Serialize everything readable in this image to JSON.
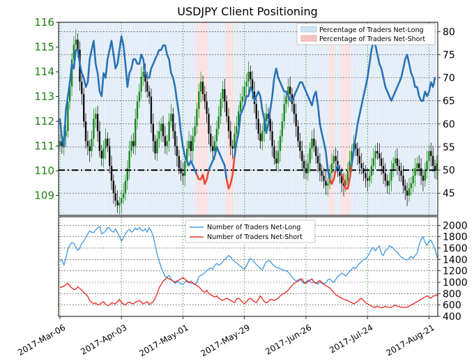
{
  "chart_data": [
    {
      "type": "line",
      "panel": "top",
      "title": "USDJPY Client Positioning",
      "left_axis_ticks": [
        "116",
        "115",
        "114",
        "113",
        "112",
        "111",
        "110",
        "109"
      ],
      "left_ylim": [
        108.2,
        116.0
      ],
      "right_axis_ticks": [
        "80",
        "75",
        "70",
        "65",
        "60",
        "55",
        "50",
        "45"
      ],
      "right_ylim": [
        40.2,
        82.0
      ],
      "grid": true,
      "legend_position": "top-right",
      "reference_line": 50,
      "series": [
        {
          "name": "Percentage of Traders Net-Long",
          "color": "#cfe3f4"
        },
        {
          "name": "Percentage of Traders Net-Short",
          "color": "#f7c4c4"
        }
      ],
      "positioning_line": [
        61,
        57,
        55,
        63,
        66,
        69,
        73,
        72,
        76,
        76,
        73,
        71,
        70,
        68,
        69,
        74,
        76,
        78,
        73,
        71,
        67,
        66,
        71,
        70,
        74,
        76,
        78,
        75,
        72,
        73,
        76,
        79,
        77,
        73,
        68,
        71,
        72,
        74,
        74,
        73,
        73,
        75,
        74,
        71,
        70,
        70,
        72,
        73,
        74,
        75,
        76,
        76,
        77,
        77,
        75,
        74,
        71,
        70,
        68,
        65,
        62,
        58,
        55,
        53,
        52,
        51,
        52,
        51,
        50,
        49,
        48,
        48,
        49,
        47,
        48,
        50,
        51,
        52,
        53,
        55,
        54,
        53,
        52,
        51,
        48,
        46,
        47,
        49,
        53,
        56,
        58,
        62,
        63,
        64,
        66,
        66,
        68,
        67,
        65,
        66,
        67,
        66,
        63,
        61,
        58,
        60,
        63,
        66,
        70,
        72,
        70,
        69,
        68,
        67,
        67,
        66,
        65,
        65,
        66,
        67,
        68,
        69,
        69,
        68,
        67,
        66,
        65,
        64,
        66,
        67,
        64,
        60,
        58,
        56,
        54,
        50,
        48,
        47,
        48,
        50,
        51,
        50,
        49,
        48,
        46,
        46,
        48,
        51,
        54,
        57,
        60,
        62,
        64,
        66,
        68,
        70,
        73,
        76,
        78,
        77,
        75,
        73,
        72,
        70,
        68,
        67,
        66,
        65,
        66,
        67,
        68,
        69,
        70,
        72,
        74,
        75,
        73,
        71,
        70,
        68,
        68,
        66,
        65,
        65,
        67,
        66,
        67,
        69,
        68,
        70
      ],
      "price": [
        111.2,
        111.0,
        111.4,
        111.6,
        112.8,
        113.4,
        114.5,
        115.1,
        115.3,
        114.9,
        113.6,
        113.1,
        112.0,
        111.2,
        111.0,
        110.8,
        111.3,
        112.1,
        112.3,
        111.6,
        110.8,
        110.5,
        110.9,
        111.3,
        111.0,
        110.2,
        109.6,
        109.1,
        108.8,
        108.6,
        108.7,
        108.9,
        109.1,
        109.6,
        110.1,
        110.8,
        111.2,
        111.0,
        112.1,
        112.8,
        113.2,
        113.8,
        114.0,
        113.6,
        113.2,
        113.0,
        111.9,
        111.2,
        110.7,
        111.3,
        111.6,
        111.9,
        111.4,
        111.0,
        111.2,
        112.0,
        112.3,
        111.6,
        111.0,
        110.6,
        110.1,
        109.9,
        109.8,
        110.4,
        110.9,
        111.2,
        110.8,
        111.4,
        111.8,
        112.5,
        113.2,
        113.6,
        113.1,
        112.8,
        112.3,
        111.5,
        111.0,
        110.8,
        111.2,
        111.7,
        112.2,
        112.9,
        113.3,
        112.8,
        112.2,
        111.6,
        111.0,
        110.9,
        111.5,
        111.8,
        112.4,
        112.8,
        113.0,
        113.4,
        113.6,
        114.0,
        113.7,
        113.2,
        112.7,
        112.1,
        111.5,
        111.2,
        111.6,
        112.0,
        112.3,
        112.1,
        111.6,
        111.0,
        110.5,
        110.3,
        110.8,
        111.4,
        112.0,
        112.7,
        113.0,
        113.4,
        113.1,
        112.7,
        112.3,
        111.8,
        111.2,
        110.8,
        110.4,
        110.1,
        109.9,
        110.3,
        110.9,
        111.3,
        111.0,
        110.6,
        110.3,
        110.0,
        109.8,
        109.6,
        109.4,
        109.5,
        109.9,
        110.3,
        110.6,
        110.4,
        110.0,
        109.8,
        109.5,
        109.4,
        109.6,
        110.0,
        110.4,
        110.8,
        111.1,
        110.9,
        110.6,
        110.3,
        110.1,
        109.9,
        109.7,
        109.6,
        109.8,
        110.2,
        110.5,
        110.8,
        110.7,
        110.5,
        110.2,
        109.9,
        109.6,
        109.4,
        109.6,
        110.0,
        110.3,
        110.5,
        110.2,
        110.0,
        109.8,
        109.4,
        109.2,
        109.0,
        109.3,
        109.5,
        109.8,
        110.1,
        110.3,
        110.1,
        109.8,
        109.6,
        110.0,
        110.4,
        110.8,
        110.6,
        110.2,
        110.0,
        110.3
      ]
    },
    {
      "type": "line",
      "panel": "bottom",
      "x_tick_labels": [
        "2017-Mar-06",
        "2017-Apr-03",
        "2017-May-01",
        "2017-May-29",
        "2017-Jun-26",
        "2017-Jul-24",
        "2017-Aug-21"
      ],
      "right_axis_ticks": [
        "2000",
        "1800",
        "1600",
        "1400",
        "1200",
        "1000",
        "800",
        "600",
        "400"
      ],
      "ylim": [
        400,
        2150
      ],
      "grid": true,
      "legend_position": "top-center",
      "series": [
        {
          "name": "Number of Traders Net-Long",
          "color": "#4a9de0",
          "values": [
            1380,
            1390,
            1300,
            1420,
            1580,
            1650,
            1700,
            1680,
            1620,
            1560,
            1600,
            1680,
            1720,
            1780,
            1850,
            1900,
            1880,
            1870,
            1920,
            1950,
            1980,
            1850,
            1870,
            1900,
            1960,
            1950,
            1900,
            1880,
            1940,
            1870,
            1800,
            1720,
            1780,
            1850,
            1900,
            1930,
            1880,
            1900,
            1950,
            1920,
            1960,
            1920,
            1900,
            1940,
            1880,
            1960,
            1900,
            1810,
            1650,
            1490,
            1380,
            1260,
            1180,
            1100,
            1090,
            1120,
            1060,
            1010,
            980,
            1000,
            1010,
            970,
            960,
            1000,
            1030,
            1010,
            980,
            990,
            960,
            990,
            1100,
            1120,
            1140,
            1170,
            1200,
            1230,
            1250,
            1230,
            1290,
            1330,
            1300,
            1320,
            1360,
            1400,
            1430,
            1470,
            1440,
            1400,
            1360,
            1340,
            1310,
            1280,
            1250,
            1230,
            1290,
            1360,
            1420,
            1390,
            1350,
            1310,
            1280,
            1240,
            1220,
            1290,
            1360,
            1380,
            1370,
            1320,
            1290,
            1260,
            1250,
            1240,
            1220,
            1210,
            1200,
            1180,
            1140,
            1090,
            1050,
            1020,
            1040,
            1060,
            1010,
            980,
            1000,
            1040,
            1010,
            990,
            1010,
            980,
            970,
            1000,
            980,
            970,
            990,
            1040,
            1060,
            1020,
            1000,
            1050,
            1100,
            1130,
            1160,
            1140,
            1110,
            1150,
            1190,
            1230,
            1260,
            1240,
            1290,
            1330,
            1360,
            1400,
            1410,
            1450,
            1510,
            1580,
            1610,
            1550,
            1600,
            1640,
            1500,
            1470,
            1560,
            1580,
            1640,
            1620,
            1600,
            1550,
            1530,
            1480,
            1440,
            1420,
            1400,
            1390,
            1420,
            1460,
            1420,
            1470,
            1510,
            1660,
            1750,
            1800,
            1700,
            1650,
            1720,
            1740,
            1660,
            1580,
            1450,
            1400,
            1390,
            1370,
            1350,
            1320
          ]
        },
        {
          "name": "Number of Traders Net-Short",
          "color": "#e8302a",
          "values": [
            900,
            920,
            930,
            960,
            980,
            930,
            900,
            870,
            880,
            920,
            890,
            860,
            820,
            790,
            750,
            680,
            650,
            620,
            640,
            600,
            610,
            640,
            660,
            610,
            590,
            600,
            640,
            630,
            620,
            660,
            700,
            640,
            620,
            600,
            640,
            650,
            630,
            620,
            650,
            660,
            680,
            650,
            620,
            640,
            660,
            610,
            630,
            660,
            720,
            800,
            900,
            960,
            1020,
            1050,
            1080,
            1060,
            1040,
            1020,
            1000,
            1020,
            1040,
            1060,
            1080,
            1060,
            1010,
            990,
            1020,
            980,
            960,
            940,
            920,
            880,
            840,
            820,
            860,
            800,
            780,
            760,
            740,
            760,
            720,
            700,
            680,
            700,
            720,
            700,
            680,
            660,
            640,
            700,
            720,
            690,
            650,
            620,
            660,
            700,
            720,
            690,
            660,
            640,
            700,
            760,
            710,
            660,
            640,
            660,
            700,
            690,
            680,
            700,
            720,
            760,
            790,
            800,
            830,
            860,
            900,
            940,
            980,
            1000,
            1020,
            1040,
            1060,
            1000,
            980,
            1010,
            1040,
            1060,
            1000,
            980,
            1010,
            1030,
            1000,
            960,
            940,
            920,
            900,
            860,
            820,
            780,
            760,
            740,
            720,
            700,
            690,
            680,
            660,
            640,
            620,
            640,
            660,
            700,
            720,
            680,
            640,
            620,
            600,
            580,
            560,
            560,
            580,
            560,
            550,
            560,
            580,
            560,
            560,
            560,
            580,
            600,
            580,
            570,
            560,
            560,
            560,
            560,
            580,
            600,
            620,
            640,
            660,
            680,
            700,
            720,
            740,
            760,
            740,
            720,
            760,
            760,
            780,
            740,
            700,
            640,
            620,
            600,
            590,
            580,
            600
          ]
        }
      ]
    }
  ]
}
